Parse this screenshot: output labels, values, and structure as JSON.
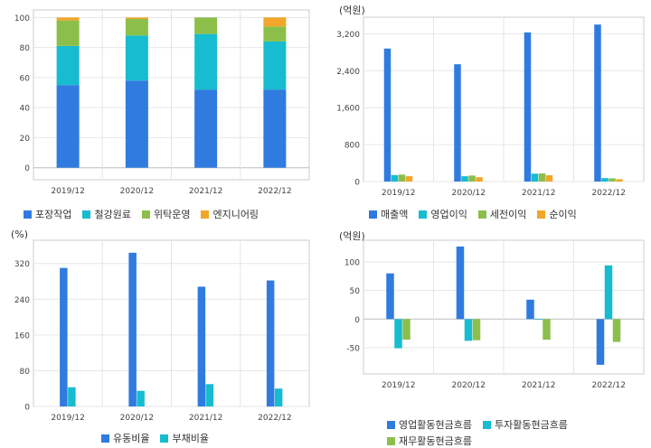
{
  "colors": {
    "blue": "#2f7be0",
    "cyan": "#17bcd0",
    "green": "#8cbf4a",
    "orange": "#f2a62a",
    "grid": "#e6e6e6",
    "frame": "#cccccc"
  },
  "chart_data": [
    {
      "id": "c1",
      "type": "bar",
      "stacked": true,
      "title": "",
      "unit": "",
      "categories": [
        "2019/12",
        "2020/12",
        "2021/12",
        "2022/12"
      ],
      "ylim": [
        -8,
        105
      ],
      "yticks": [
        0,
        20,
        40,
        60,
        80,
        100
      ],
      "series": [
        {
          "name": "포장작업",
          "color": "#2f7be0",
          "values": [
            55,
            58,
            52,
            52
          ]
        },
        {
          "name": "철강원료",
          "color": "#17bcd0",
          "values": [
            26,
            30,
            37,
            32
          ]
        },
        {
          "name": "위탁운영",
          "color": "#8cbf4a",
          "values": [
            17,
            11,
            11,
            10
          ]
        },
        {
          "name": "엔지니어링",
          "color": "#f2a62a",
          "values": [
            2,
            1,
            0,
            6
          ]
        }
      ],
      "legend_position": "bottom"
    },
    {
      "id": "c2",
      "type": "bar",
      "title": "",
      "unit": "(억원)",
      "categories": [
        "2019/12",
        "2020/12",
        "2021/12",
        "2022/12"
      ],
      "ylim": [
        0,
        3560
      ],
      "yticks": [
        0,
        800,
        1600,
        2400,
        3200
      ],
      "series": [
        {
          "name": "매출액",
          "color": "#2f7be0",
          "values": [
            2880,
            2540,
            3230,
            3400
          ]
        },
        {
          "name": "영업이익",
          "color": "#17bcd0",
          "values": [
            140,
            115,
            170,
            75
          ]
        },
        {
          "name": "세전이익",
          "color": "#8cbf4a",
          "values": [
            150,
            130,
            175,
            70
          ]
        },
        {
          "name": "순이익",
          "color": "#f2a62a",
          "values": [
            115,
            95,
            135,
            50
          ]
        }
      ],
      "legend_position": "bottom"
    },
    {
      "id": "c3",
      "type": "bar",
      "title": "",
      "unit": "(%)",
      "categories": [
        "2019/12",
        "2020/12",
        "2021/12",
        "2022/12"
      ],
      "ylim": [
        0,
        372
      ],
      "yticks": [
        0,
        80,
        160,
        240,
        320
      ],
      "series": [
        {
          "name": "유동비율",
          "color": "#2f7be0",
          "values": [
            310,
            344,
            268,
            282
          ]
        },
        {
          "name": "부채비율",
          "color": "#17bcd0",
          "values": [
            43,
            35,
            50,
            40
          ]
        }
      ],
      "legend_position": "bottom"
    },
    {
      "id": "c4",
      "type": "bar",
      "title": "",
      "unit": "(억원)",
      "categories": [
        "2019/12",
        "2020/12",
        "2021/12",
        "2022/12"
      ],
      "ylim": [
        -96,
        138
      ],
      "yticks": [
        -50,
        0,
        50,
        100
      ],
      "series": [
        {
          "name": "영업활동현금흐름",
          "color": "#2f7be0",
          "values": [
            80,
            127,
            34,
            -80
          ]
        },
        {
          "name": "투자활동현금흐름",
          "color": "#17bcd0",
          "values": [
            -51,
            -38,
            -1,
            94
          ]
        },
        {
          "name": "재무활동현금흐름",
          "color": "#8cbf4a",
          "values": [
            -36,
            -37,
            -36,
            -40
          ]
        }
      ],
      "legend_position": "bottom"
    }
  ]
}
